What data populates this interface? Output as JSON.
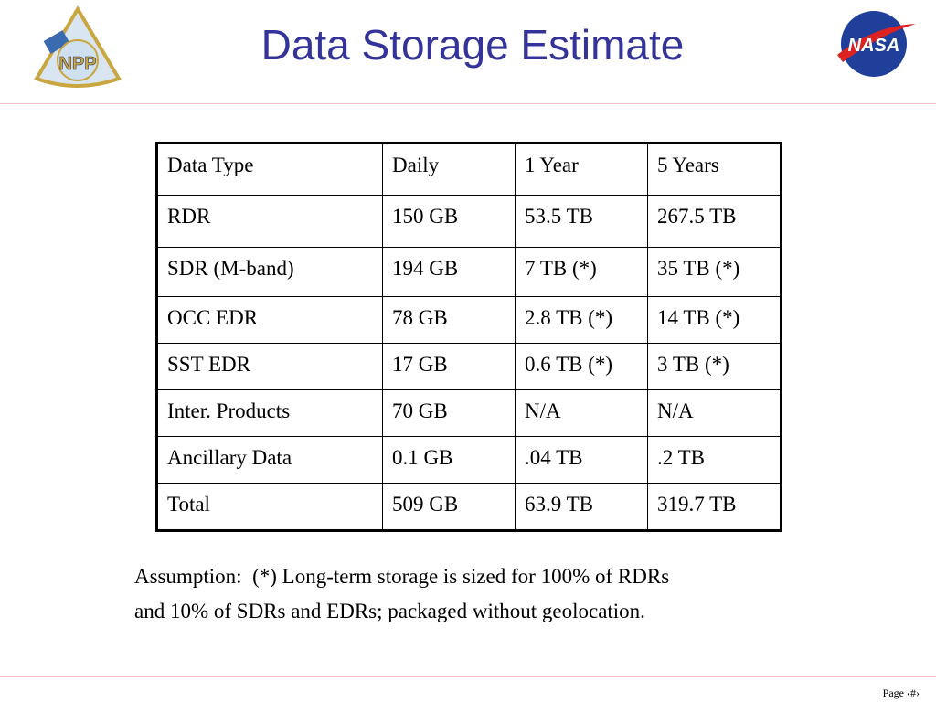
{
  "header": {
    "title": "Data Storage Estimate",
    "left_logo": "NPP",
    "right_logo": "NASA"
  },
  "table": {
    "columns": [
      "Data Type",
      "Daily",
      "1 Year",
      "5 Years"
    ],
    "rows": [
      [
        "RDR",
        "150 GB",
        "53.5 TB",
        "267.5 TB"
      ],
      [
        "SDR (M-band)",
        "194 GB",
        "7 TB (*)",
        "35 TB (*)"
      ],
      [
        "OCC EDR",
        "78 GB",
        "2.8 TB (*)",
        "14 TB (*)"
      ],
      [
        "SST EDR",
        "17 GB",
        "0.6 TB (*)",
        "3 TB (*)"
      ],
      [
        "Inter. Products",
        "70 GB",
        "N/A",
        "N/A"
      ],
      [
        "Ancillary Data",
        "0.1 GB",
        ".04 TB",
        ".2 TB"
      ],
      [
        "Total",
        "509 GB",
        "63.9 TB",
        "319.7 TB"
      ]
    ]
  },
  "assumption": [
    "Assumption:  (*) Long-term storage is sized for 100% of RDRs",
    "and 10% of SDRs and EDRs; packaged without geolocation."
  ],
  "footer": {
    "page": "Page ‹#›"
  }
}
